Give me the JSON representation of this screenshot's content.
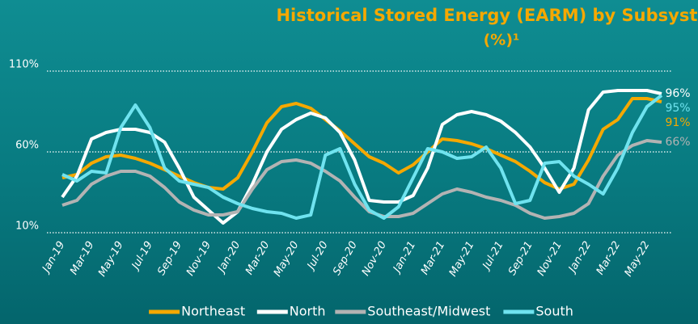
{
  "chart_data": {
    "type": "line",
    "title": "Historical Stored Energy (EARM) by Subsystem",
    "subtitle": "(%)¹",
    "categories": [
      "Jan-19",
      null,
      "Mar-19",
      null,
      "May-19",
      null,
      "Jul-19",
      null,
      "Sep-19",
      null,
      "Nov-19",
      null,
      "Jan-20",
      null,
      "Mar-20",
      null,
      "May-20",
      null,
      "Jul-20",
      null,
      "Sep-20",
      null,
      "Nov-20",
      null,
      "Jan-21",
      null,
      "Mar-21",
      null,
      "May-21",
      null,
      "Jul-21",
      null,
      "Sep-21",
      null,
      "Nov-21",
      null,
      "Jan-22",
      null,
      "Mar-22",
      null,
      "May-22",
      null
    ],
    "series": [
      {
        "name": "Northeast",
        "color": "#f5a800",
        "values": [
          44,
          46,
          53,
          57,
          58,
          56,
          53,
          49,
          45,
          41,
          38,
          37,
          44,
          60,
          78,
          88,
          90,
          87,
          80,
          73,
          65,
          57,
          53,
          47,
          52,
          60,
          68,
          67,
          65,
          62,
          58,
          54,
          48,
          41,
          37,
          40,
          55,
          74,
          80,
          93,
          93,
          91
        ],
        "value_labels": [
          null,
          null,
          null,
          null,
          null,
          null,
          null,
          null,
          null,
          null,
          null,
          null,
          null,
          null,
          null,
          null,
          null,
          null,
          null,
          null,
          null,
          null,
          null,
          null,
          null,
          null,
          null,
          null,
          null,
          null,
          null,
          null,
          null,
          null,
          null,
          null,
          null,
          null,
          null,
          null,
          null,
          "91%"
        ]
      },
      {
        "name": "North",
        "color": "#ffffff",
        "values": [
          32,
          45,
          68,
          72,
          74,
          74,
          72,
          66,
          50,
          32,
          24,
          16,
          23,
          40,
          60,
          74,
          80,
          84,
          81,
          72,
          55,
          30,
          29,
          29,
          33,
          50,
          77,
          83,
          85,
          83,
          79,
          72,
          63,
          50,
          35,
          50,
          86,
          97,
          98,
          98,
          98,
          96
        ],
        "value_labels": [
          null,
          null,
          null,
          null,
          null,
          null,
          null,
          null,
          null,
          null,
          null,
          null,
          null,
          null,
          null,
          null,
          null,
          null,
          null,
          null,
          null,
          null,
          null,
          null,
          null,
          null,
          null,
          null,
          null,
          null,
          null,
          null,
          null,
          null,
          null,
          null,
          null,
          null,
          null,
          null,
          null,
          "96%"
        ]
      },
      {
        "name": "Southeast/Midwest",
        "color": "#b3b3b3",
        "values": [
          27,
          30,
          40,
          45,
          48,
          48,
          45,
          38,
          29,
          24,
          21,
          21,
          23,
          37,
          49,
          54,
          55,
          53,
          48,
          42,
          32,
          23,
          20,
          20,
          22,
          28,
          34,
          37,
          35,
          32,
          30,
          27,
          22,
          19,
          20,
          22,
          28,
          45,
          58,
          64,
          67,
          66
        ],
        "value_labels": [
          null,
          null,
          null,
          null,
          null,
          null,
          null,
          null,
          null,
          null,
          null,
          null,
          null,
          null,
          null,
          null,
          null,
          null,
          null,
          null,
          null,
          null,
          null,
          null,
          null,
          null,
          null,
          null,
          null,
          null,
          null,
          null,
          null,
          null,
          null,
          null,
          null,
          null,
          null,
          null,
          null,
          "66%"
        ]
      },
      {
        "name": "South",
        "color": "#6fe3ef",
        "values": [
          46,
          42,
          48,
          47,
          75,
          89,
          75,
          50,
          42,
          40,
          38,
          32,
          28,
          25,
          23,
          22,
          19,
          21,
          58,
          62,
          40,
          24,
          19,
          26,
          44,
          62,
          60,
          56,
          57,
          63,
          50,
          28,
          30,
          53,
          54,
          45,
          40,
          34,
          50,
          72,
          88,
          95
        ],
        "value_labels": [
          null,
          null,
          null,
          null,
          null,
          null,
          null,
          null,
          null,
          null,
          null,
          null,
          null,
          null,
          null,
          null,
          null,
          null,
          null,
          null,
          null,
          null,
          null,
          null,
          null,
          null,
          null,
          null,
          null,
          null,
          null,
          null,
          null,
          null,
          null,
          null,
          null,
          null,
          null,
          null,
          null,
          "95%"
        ]
      }
    ],
    "ylim": [
      10,
      110
    ],
    "yticks": [
      {
        "value": 10,
        "label": "10%"
      },
      {
        "value": 60,
        "label": "60%"
      },
      {
        "value": 110,
        "label": "110%"
      }
    ],
    "grid": true,
    "legend": "bottom"
  }
}
